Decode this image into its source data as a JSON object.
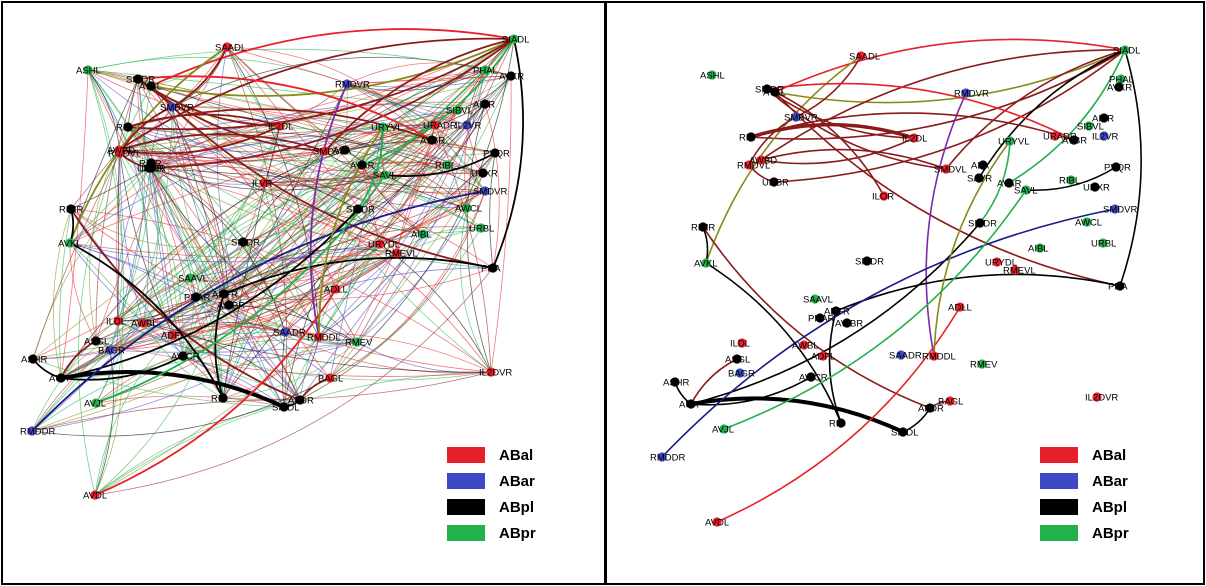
{
  "figure": {
    "legend": [
      {
        "key": "ABal",
        "label": "ABal",
        "color": "#e8202a"
      },
      {
        "key": "ABar",
        "label": "ABar",
        "color": "#3f49c7"
      },
      {
        "key": "ABpl",
        "label": "ABpl",
        "color": "#000000"
      },
      {
        "key": "ABpr",
        "label": "ABpr",
        "color": "#22b14c"
      }
    ],
    "panels": [
      {
        "id": "left",
        "nodes": [
          {
            "id": "SAADL",
            "label": "SAADL",
            "lineage": "ABal"
          },
          {
            "id": "SIADL",
            "label": "SIADL",
            "lineage": "ABpr"
          },
          {
            "id": "ASHL",
            "label": "ASHL",
            "lineage": "ABpr"
          },
          {
            "id": "SIADR",
            "label": "SIADR",
            "lineage": "ABpl"
          },
          {
            "id": "AVAL",
            "label": "AVAL",
            "lineage": "ABpl"
          },
          {
            "id": "RMDVR",
            "label": "RMDVR",
            "lineage": "ABar"
          },
          {
            "id": "PHAL",
            "label": "PHAL",
            "lineage": "ABpr"
          },
          {
            "id": "AVKR",
            "label": "AVKR",
            "lineage": "ABpl"
          },
          {
            "id": "SMBVR",
            "label": "SMBVR",
            "lineage": "ABar"
          },
          {
            "id": "AIYR",
            "label": "AIYR",
            "lineage": "ABpl"
          },
          {
            "id": "RIR",
            "label": "RIR",
            "lineage": "ABpl"
          },
          {
            "id": "IL2DL",
            "label": "IL2DL",
            "lineage": "ABal"
          },
          {
            "id": "URYVL",
            "label": "URYVL",
            "lineage": "ABpr"
          },
          {
            "id": "SIBVL",
            "label": "SIBVL",
            "lineage": "ABpr"
          },
          {
            "id": "IL2VR",
            "label": "IL2VR",
            "lineage": "ABar"
          },
          {
            "id": "URADR",
            "label": "URADR",
            "lineage": "ABal"
          },
          {
            "id": "AVBR",
            "label": "AVBR",
            "lineage": "ABpl"
          },
          {
            "id": "PVQR",
            "label": "PVQR",
            "lineage": "ABpl"
          },
          {
            "id": "RMDVL",
            "label": "RMDVL",
            "lineage": "ABal"
          },
          {
            "id": "ALA",
            "label": "ALA",
            "lineage": "ABpl"
          },
          {
            "id": "SMDVL",
            "label": "SMDVL",
            "lineage": "ABal"
          },
          {
            "id": "RIBL",
            "label": "RIBL",
            "lineage": "ABpr"
          },
          {
            "id": "URBR",
            "label": "URBR",
            "lineage": "ABpl"
          },
          {
            "id": "URXR",
            "label": "URXR",
            "lineage": "ABpl"
          },
          {
            "id": "AVAR",
            "label": "AVAR",
            "lineage": "ABpl"
          },
          {
            "id": "SAVL",
            "label": "SAVL",
            "lineage": "ABpr"
          },
          {
            "id": "SMDVR",
            "label": "SMDVR",
            "lineage": "ABar"
          },
          {
            "id": "ILVR",
            "label": "ILVR",
            "lineage": "ABal"
          },
          {
            "id": "SIBDR",
            "label": "SIBDR",
            "lineage": "ABpl"
          },
          {
            "id": "AWCL",
            "label": "AWCL",
            "lineage": "ABpr"
          },
          {
            "id": "RIMR",
            "label": "RIMR",
            "lineage": "ABpl"
          },
          {
            "id": "URBL",
            "label": "URBL",
            "lineage": "ABpr"
          },
          {
            "id": "AVKL",
            "label": "AVKL",
            "lineage": "ABpr"
          },
          {
            "id": "AIBL",
            "label": "AIBL",
            "lineage": "ABpr"
          },
          {
            "id": "SIADR2",
            "label": "SIADR",
            "lineage": "ABpl"
          },
          {
            "id": "URYDL",
            "label": "URYDL",
            "lineage": "ABal"
          },
          {
            "id": "RMEVL",
            "label": "RMEVL",
            "lineage": "ABal"
          },
          {
            "id": "PDA",
            "label": "PDA",
            "lineage": "ABpl"
          },
          {
            "id": "SAAVL",
            "label": "SAAVL",
            "lineage": "ABpr"
          },
          {
            "id": "ADFR",
            "label": "ADFR",
            "lineage": "ABpl"
          },
          {
            "id": "PHAR",
            "label": "PHAR",
            "lineage": "ABpl"
          },
          {
            "id": "AWBR",
            "label": "AWBR",
            "lineage": "ABpl"
          },
          {
            "id": "ADLL",
            "label": "ADLL",
            "lineage": "ABal"
          },
          {
            "id": "ILDL",
            "label": "ILDL",
            "lineage": "ABal"
          },
          {
            "id": "AWBL",
            "label": "AWBL",
            "lineage": "ABal"
          },
          {
            "id": "ADFL",
            "label": "ADFL",
            "lineage": "ABal"
          },
          {
            "id": "SAADR",
            "label": "SAADR",
            "lineage": "ABar"
          },
          {
            "id": "RMDDL",
            "label": "RMDDL",
            "lineage": "ABal"
          },
          {
            "id": "RMEV",
            "label": "RMEV",
            "lineage": "ABpr"
          },
          {
            "id": "ASGL",
            "label": "ASGL",
            "lineage": "ABpl"
          },
          {
            "id": "BAGR",
            "label": "BAGR",
            "lineage": "ABar"
          },
          {
            "id": "ASHR",
            "label": "ASHR",
            "lineage": "ABpl"
          },
          {
            "id": "AWCR",
            "label": "AWCR",
            "lineage": "ABpl"
          },
          {
            "id": "IL2DVR",
            "label": "IL2DVR",
            "lineage": "ABal"
          },
          {
            "id": "AUA",
            "label": "AUA",
            "lineage": "ABpl"
          },
          {
            "id": "BAGL",
            "label": "BAGL",
            "lineage": "ABal"
          },
          {
            "id": "AFDR",
            "label": "AFDR",
            "lineage": "ABpl"
          },
          {
            "id": "AVJL",
            "label": "AVJL",
            "lineage": "ABpr"
          },
          {
            "id": "RIG",
            "label": "RIG",
            "lineage": "ABpl"
          },
          {
            "id": "SIBDL",
            "label": "SIBDL",
            "lineage": "ABpl"
          },
          {
            "id": "RMDDR",
            "label": "RMDDR",
            "lineage": "ABar"
          },
          {
            "id": "AVDL",
            "label": "AVDL",
            "lineage": "ABal"
          },
          {
            "id": "RIVR",
            "label": "RIVR",
            "lineage": "ABpl"
          },
          {
            "id": "AWBD",
            "label": "AWBD",
            "lineage": "ABal"
          },
          {
            "id": "URBR2",
            "label": "URBR",
            "lineage": "ABpl"
          }
        ]
      },
      {
        "id": "right",
        "nodes": [
          {
            "id": "SAADL",
            "label": "SAADL",
            "lineage": "ABal"
          },
          {
            "id": "SIADL",
            "label": "SIADL",
            "lineage": "ABpr"
          },
          {
            "id": "ASHL",
            "label": "ASHL",
            "lineage": "ABpr"
          },
          {
            "id": "SIADR",
            "label": "SIADR",
            "lineage": "ABpl"
          },
          {
            "id": "AVAL",
            "label": "AVAL",
            "lineage": "ABpl"
          },
          {
            "id": "RMDVR",
            "label": "RMDVR",
            "lineage": "ABar"
          },
          {
            "id": "PHAL",
            "label": "PHAL",
            "lineage": "ABpr"
          },
          {
            "id": "AVKR",
            "label": "AVKR",
            "lineage": "ABpl"
          },
          {
            "id": "SMBVR",
            "label": "SMBVR",
            "lineage": "ABar"
          },
          {
            "id": "AIYR",
            "label": "AIYR",
            "lineage": "ABpl"
          },
          {
            "id": "SIBVL",
            "label": "SIBVL",
            "lineage": "ABpr"
          },
          {
            "id": "IL2VR",
            "label": "IL2VR",
            "lineage": "ABar"
          },
          {
            "id": "RIR",
            "label": "RIR",
            "lineage": "ABpl"
          },
          {
            "id": "IL2DL",
            "label": "IL2DL",
            "lineage": "ABal"
          },
          {
            "id": "URYVL",
            "label": "URYVL",
            "lineage": "ABpr"
          },
          {
            "id": "URADR",
            "label": "URADR",
            "lineage": "ABal"
          },
          {
            "id": "AVBR",
            "label": "AVBR",
            "lineage": "ABpl"
          },
          {
            "id": "RMDVL",
            "label": "RMDVL",
            "lineage": "ABal"
          },
          {
            "id": "AWBD",
            "label": "AWBD",
            "lineage": "ABal"
          },
          {
            "id": "PVQR",
            "label": "PVQR",
            "lineage": "ABpl"
          },
          {
            "id": "SMDVL",
            "label": "SMDVL",
            "lineage": "ABal"
          },
          {
            "id": "ALA",
            "label": "ALA",
            "lineage": "ABpl"
          },
          {
            "id": "URBR",
            "label": "URBR",
            "lineage": "ABpl"
          },
          {
            "id": "SAVR",
            "label": "SAVR",
            "lineage": "ABpl"
          },
          {
            "id": "RIBL",
            "label": "RIBL",
            "lineage": "ABpr"
          },
          {
            "id": "AVAR",
            "label": "AVAR",
            "lineage": "ABpl"
          },
          {
            "id": "URXR",
            "label": "URXR",
            "lineage": "ABpl"
          },
          {
            "id": "SAVL",
            "label": "SAVL",
            "lineage": "ABpr"
          },
          {
            "id": "ILOR",
            "label": "ILOR",
            "lineage": "ABal"
          },
          {
            "id": "SMDVR",
            "label": "SMDVR",
            "lineage": "ABar"
          },
          {
            "id": "SIBDR",
            "label": "SIBDR",
            "lineage": "ABpl"
          },
          {
            "id": "AWCL",
            "label": "AWCL",
            "lineage": "ABpr"
          },
          {
            "id": "RIMR",
            "label": "RIMR",
            "lineage": "ABpl"
          },
          {
            "id": "AIBL",
            "label": "AIBL",
            "lineage": "ABpr"
          },
          {
            "id": "URBL",
            "label": "URBL",
            "lineage": "ABpr"
          },
          {
            "id": "AVKL",
            "label": "AVKL",
            "lineage": "ABpr"
          },
          {
            "id": "SIADR2",
            "label": "SIADR",
            "lineage": "ABpl"
          },
          {
            "id": "URYDL",
            "label": "URYDL",
            "lineage": "ABal"
          },
          {
            "id": "RMEVL",
            "label": "RMEVL",
            "lineage": "ABal"
          },
          {
            "id": "PDA",
            "label": "PDA",
            "lineage": "ABpl"
          },
          {
            "id": "SAAVL",
            "label": "SAAVL",
            "lineage": "ABpr"
          },
          {
            "id": "ADFR",
            "label": "ADFR",
            "lineage": "ABpl"
          },
          {
            "id": "PHAR",
            "label": "PHAR",
            "lineage": "ABpl"
          },
          {
            "id": "AWBR",
            "label": "AWBR",
            "lineage": "ABpl"
          },
          {
            "id": "ADLL",
            "label": "ADLL",
            "lineage": "ABal"
          },
          {
            "id": "ILDL",
            "label": "ILDL",
            "lineage": "ABal"
          },
          {
            "id": "AWBL",
            "label": "AWBL",
            "lineage": "ABal"
          },
          {
            "id": "ADFL",
            "label": "ADFL",
            "lineage": "ABal"
          },
          {
            "id": "SAADR",
            "label": "SAADR",
            "lineage": "ABar"
          },
          {
            "id": "RMDDL",
            "label": "RMDDL",
            "lineage": "ABal"
          },
          {
            "id": "RMEV",
            "label": "RMEV",
            "lineage": "ABpr"
          },
          {
            "id": "ASGL",
            "label": "ASGL",
            "lineage": "ABpl"
          },
          {
            "id": "BAGR",
            "label": "BAGR",
            "lineage": "ABar"
          },
          {
            "id": "AWCR",
            "label": "AWCR",
            "lineage": "ABpl"
          },
          {
            "id": "ASHR",
            "label": "ASHR",
            "lineage": "ABpl"
          },
          {
            "id": "IL2DVR",
            "label": "IL2DVR",
            "lineage": "ABal"
          },
          {
            "id": "AUA",
            "label": "AUA",
            "lineage": "ABpl"
          },
          {
            "id": "BAGL",
            "label": "BAGL",
            "lineage": "ABal"
          },
          {
            "id": "AFDR",
            "label": "AFDR",
            "lineage": "ABpl"
          },
          {
            "id": "RIG",
            "label": "RIG",
            "lineage": "ABpl"
          },
          {
            "id": "AVJL",
            "label": "AVJL",
            "lineage": "ABpr"
          },
          {
            "id": "SIBDL",
            "label": "SIBDL",
            "lineage": "ABpl"
          },
          {
            "id": "RMDDR",
            "label": "RMDDR",
            "lineage": "ABar"
          },
          {
            "id": "AVDL",
            "label": "AVDL",
            "lineage": "ABal"
          }
        ],
        "edges": [
          {
            "from": "SIADL",
            "to": "AVAL",
            "color": "#8a8a1a"
          },
          {
            "from": "SIADL",
            "to": "AVAL",
            "color": "#e8202a"
          },
          {
            "from": "SIADL",
            "to": "RIR",
            "color": "#8b1a1a"
          },
          {
            "from": "SIADL",
            "to": "AWBD",
            "color": "#8b1a1a"
          },
          {
            "from": "SIADL",
            "to": "URBR",
            "color": "#8b1a1a"
          },
          {
            "from": "SIADL",
            "to": "SMDVL",
            "color": "#8b1a1a"
          },
          {
            "from": "SIADL",
            "to": "AVAR",
            "color": "#22b14c"
          },
          {
            "from": "SIADL",
            "to": "SAVR",
            "color": "#000000"
          },
          {
            "from": "SIADL",
            "to": "PDA",
            "color": "#000000"
          },
          {
            "from": "SAADL",
            "to": "AVKL",
            "color": "#8a8a1a"
          },
          {
            "from": "SAADL",
            "to": "SMBVR",
            "color": "#8b1a1a"
          },
          {
            "from": "SIADR",
            "to": "IL2DL",
            "color": "#8b1a1a"
          },
          {
            "from": "SIADR",
            "to": "AVBR",
            "color": "#e8202a"
          },
          {
            "from": "AVAL",
            "to": "PDA",
            "color": "#8b1a1a"
          },
          {
            "from": "AVAL",
            "to": "ILOR",
            "color": "#8b1a1a"
          },
          {
            "from": "RMDVR",
            "to": "RMDDL",
            "color": "#7d2aa8"
          },
          {
            "from": "RIR",
            "to": "IL2DL",
            "color": "#8b1a1a"
          },
          {
            "from": "AWBD",
            "to": "IL2DL",
            "color": "#8b1a1a"
          },
          {
            "from": "AWBD",
            "to": "SMDVL",
            "color": "#8b1a1a"
          },
          {
            "from": "SMBVR",
            "to": "RMDVL",
            "color": "#8b1a1a"
          },
          {
            "from": "RIMR",
            "to": "AVKL",
            "color": "#000000"
          },
          {
            "from": "RIMR",
            "to": "AFDR",
            "color": "#8b1a1a"
          },
          {
            "from": "AVKL",
            "to": "RIG",
            "color": "#000000"
          },
          {
            "from": "ASHR",
            "to": "AUA",
            "color": "#000000"
          },
          {
            "from": "AUA",
            "to": "SIBDL",
            "color": "#000000"
          },
          {
            "from": "AUA",
            "to": "AWCR",
            "color": "#000000"
          },
          {
            "from": "AUA",
            "to": "ASGL",
            "color": "#8b1a1a"
          },
          {
            "from": "AUA",
            "to": "SIBDR",
            "color": "#000000"
          },
          {
            "from": "ADFR",
            "to": "PDA",
            "color": "#000000"
          },
          {
            "from": "ADFR",
            "to": "RIG",
            "color": "#000000"
          },
          {
            "from": "RMDDR",
            "to": "SMDVR",
            "color": "#1a1a8b"
          },
          {
            "from": "AVDL",
            "to": "ADLL",
            "color": "#e8202a"
          },
          {
            "from": "RMDDL",
            "to": "URYVL",
            "color": "#8a8a1a"
          },
          {
            "from": "AVJL",
            "to": "SAVL",
            "color": "#22b14c"
          },
          {
            "from": "URYVL",
            "to": "SIBDR",
            "color": "#22b14c"
          },
          {
            "from": "SAVL",
            "to": "PVQR",
            "color": "#000000"
          },
          {
            "from": "AFDR",
            "to": "SIBDL",
            "color": "#000000"
          },
          {
            "from": "BAGL",
            "to": "AFDR",
            "color": "#8b1a1a"
          },
          {
            "from": "RIR",
            "to": "AVBR",
            "color": "#8b1a1a"
          },
          {
            "from": "SIADR",
            "to": "SMDVL",
            "color": "#8b1a1a"
          },
          {
            "from": "URBR",
            "to": "RMDVL",
            "color": "#8b1a1a"
          }
        ]
      }
    ]
  }
}
